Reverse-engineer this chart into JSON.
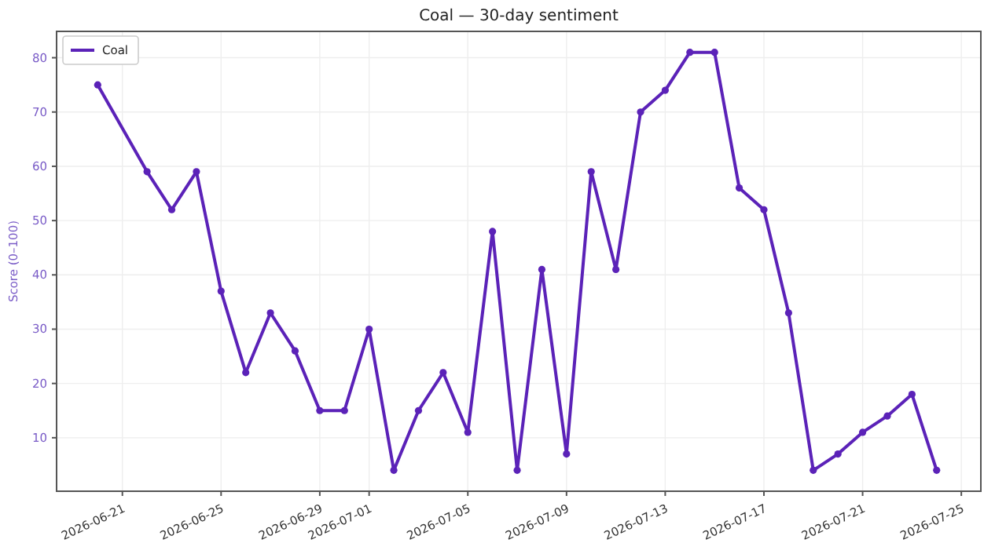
{
  "chart_data": {
    "type": "line",
    "title": "Coal — 30-day sentiment",
    "ylabel": "Score (0–100)",
    "x": [
      "2026-06-20",
      "2026-06-22",
      "2026-06-23",
      "2026-06-24",
      "2026-06-25",
      "2026-06-26",
      "2026-06-27",
      "2026-06-28",
      "2026-06-29",
      "2026-06-30",
      "2026-07-01",
      "2026-07-02",
      "2026-07-03",
      "2026-07-04",
      "2026-07-05",
      "2026-07-06",
      "2026-07-07",
      "2026-07-08",
      "2026-07-09",
      "2026-07-10",
      "2026-07-11",
      "2026-07-12",
      "2026-07-13",
      "2026-07-14",
      "2026-07-15",
      "2026-07-16",
      "2026-07-17",
      "2026-07-18",
      "2026-07-19",
      "2026-07-20",
      "2026-07-21",
      "2026-07-22",
      "2026-07-23",
      "2026-07-24"
    ],
    "series": [
      {
        "name": "Coal",
        "color": "#5b22b8",
        "values": [
          75,
          59,
          52,
          59,
          37,
          22,
          33,
          26,
          15,
          15,
          30,
          4,
          15,
          22,
          11,
          48,
          4,
          41,
          7,
          59,
          41,
          70,
          74,
          81,
          81,
          56,
          52,
          33,
          4,
          7,
          11,
          14,
          18,
          4
        ]
      }
    ],
    "xlim": [
      "2026-06-18T08:00",
      "2026-07-25T19:00"
    ],
    "xticks": [
      "2026-06-21",
      "2026-06-25",
      "2026-06-29",
      "2026-07-01",
      "2026-07-05",
      "2026-07-09",
      "2026-07-13",
      "2026-07-17",
      "2026-07-21",
      "2026-07-25"
    ],
    "ylim": [
      0.15,
      84.85
    ],
    "yticks": [
      10,
      20,
      30,
      40,
      50,
      60,
      70,
      80
    ],
    "grid": true,
    "legend": "top left",
    "marker": "circle",
    "line_style": "solid"
  }
}
